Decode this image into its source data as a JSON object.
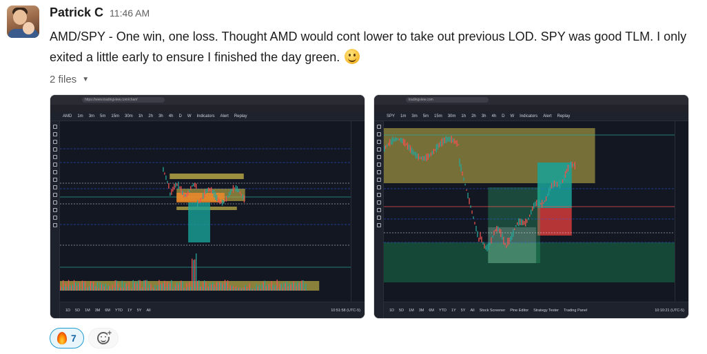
{
  "message": {
    "author": "Patrick C",
    "time": "11:46 AM",
    "text": "AMD/SPY - One win, one loss. Thought AMD would cont lower to take out previous LOD. SPY was good TLM. I only exited a little early to ensure I finished the day green.",
    "emoji": "slightly-smiling-face-icon"
  },
  "files": {
    "label": "2 files",
    "items": [
      {
        "url": "https://www.tradingview.com/chart/",
        "symbol": "AMD",
        "title": "Advanced Micro Devices Inc · 1 · NASDAQ",
        "toolbar": [
          "1m",
          "3m",
          "5m",
          "15m",
          "30m",
          "1h",
          "2h",
          "3h",
          "4h",
          "D",
          "W",
          "Indicators",
          "Alert",
          "Replay"
        ],
        "bottom": [
          "1D",
          "5D",
          "1M",
          "3M",
          "6M",
          "YTD",
          "1Y",
          "5Y",
          "All"
        ],
        "clock": "10:51:58 (UTC-5)",
        "colors": {
          "up": "#26a69a",
          "down": "#ef5350",
          "zone": "#c9b84a",
          "orange": "#f0882a",
          "teal": "#1aa398"
        }
      },
      {
        "url": "tradingview.com",
        "symbol": "SPY",
        "title": "SPDR S&P 500 ETF TRUST · 1 · Arca",
        "toolbar": [
          "1m",
          "3m",
          "5m",
          "15m",
          "30m",
          "1h",
          "2h",
          "3h",
          "4h",
          "D",
          "W",
          "Indicators",
          "Alert",
          "Replay"
        ],
        "bottom": [
          "1D",
          "5D",
          "1M",
          "3M",
          "6M",
          "YTD",
          "1Y",
          "5Y",
          "All"
        ],
        "panels": [
          "Stock Screener",
          "Pine Editor",
          "Strategy Tester",
          "Trading Panel"
        ],
        "clock": "10:10:21 (UTC-5)",
        "colors": {
          "up": "#26a69a",
          "down": "#ef5350",
          "zone": "#c9b84a",
          "green": "#1aa35f",
          "red": "#d23b3b"
        }
      }
    ]
  },
  "reactions": [
    {
      "emoji": "fire-icon",
      "count": "7"
    }
  ],
  "add_reaction": "add-reaction-icon"
}
